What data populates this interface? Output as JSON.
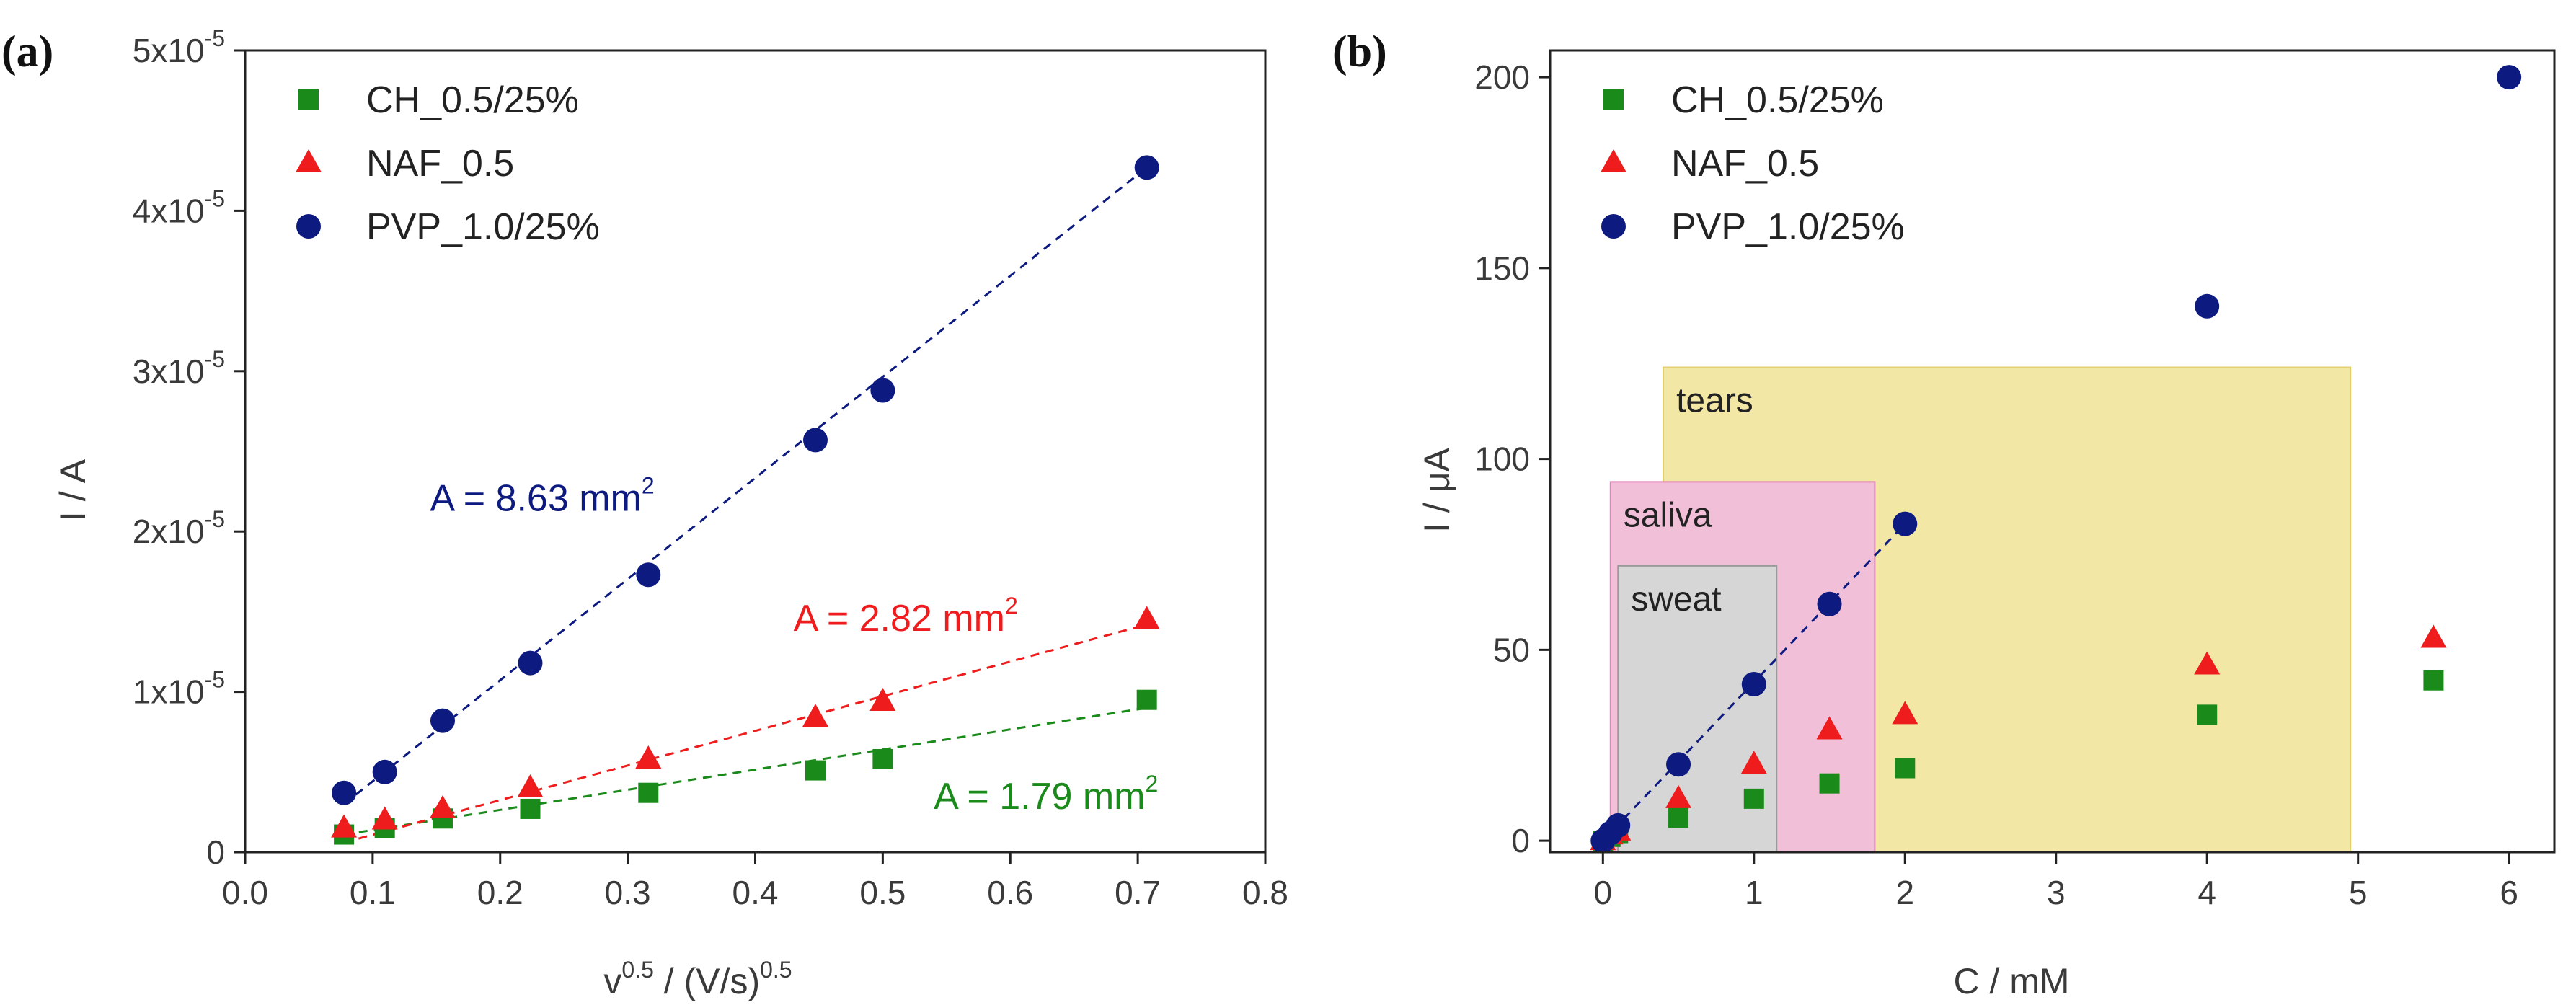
{
  "colors": {
    "ch": "#1a8a1a",
    "naf": "#ee1c1c",
    "pvp": "#0d1a80",
    "tears_fill": "#f3e7a6",
    "saliva_fill": "#f2bfd9",
    "sweat_fill": "#d6d6d6",
    "axis": "#222222",
    "text": "#3a3a3a"
  },
  "chart_data": [
    {
      "panel_label": "(a)",
      "type": "scatter",
      "xlabel_base": "v",
      "xlabel_sup": "0.5",
      "xlabel_mid": " / (V/s)",
      "xlabel_sup2": "0.5",
      "ylabel": "I / A",
      "xlim": [
        0.0,
        0.8
      ],
      "ylim": [
        0,
        5e-05
      ],
      "xticks": [
        0.0,
        0.1,
        0.2,
        0.3,
        0.4,
        0.5,
        0.6,
        0.7,
        0.8
      ],
      "xtick_labels": [
        "0.0",
        "0.1",
        "0.2",
        "0.3",
        "0.4",
        "0.5",
        "0.6",
        "0.7",
        "0.8"
      ],
      "yticks": [
        {
          "value": 0,
          "label": "0",
          "exp": ""
        },
        {
          "value": 1e-05,
          "label": "1x10",
          "exp": "-5"
        },
        {
          "value": 2e-05,
          "label": "2x10",
          "exp": "-5"
        },
        {
          "value": 3e-05,
          "label": "3x10",
          "exp": "-5"
        },
        {
          "value": 4e-05,
          "label": "4x10",
          "exp": "-5"
        },
        {
          "value": 5e-05,
          "label": "5x10",
          "exp": "-5"
        }
      ],
      "legend_position": "top-left",
      "series": [
        {
          "name": "CH_0.5/25%",
          "marker": "square",
          "color_key": "ch",
          "x": [
            0.0775,
            0.1095,
            0.1549,
            0.2236,
            0.3162,
            0.4472,
            0.5,
            0.7071
          ],
          "y": [
            1.1e-06,
            1.5e-06,
            2.1e-06,
            2.7e-06,
            3.7e-06,
            5.1e-06,
            5.8e-06,
            9.5e-06
          ],
          "fit": [
            [
              0.0775,
              1.1e-06
            ],
            [
              0.7071,
              9e-06
            ]
          ]
        },
        {
          "name": "NAF_0.5",
          "marker": "triangle",
          "color_key": "naf",
          "x": [
            0.0775,
            0.1095,
            0.1549,
            0.2236,
            0.3162,
            0.4472,
            0.5,
            0.7071
          ],
          "y": [
            1.5e-06,
            2e-06,
            2.7e-06,
            4e-06,
            5.8e-06,
            8.4e-06,
            9.4e-06,
            1.45e-05
          ],
          "fit": [
            [
              0.0775,
              6e-07
            ],
            [
              0.7071,
              1.42e-05
            ]
          ]
        },
        {
          "name": "PVP_1.0/25%",
          "marker": "circle",
          "color_key": "pvp",
          "x": [
            0.0775,
            0.1095,
            0.1549,
            0.2236,
            0.3162,
            0.4472,
            0.5,
            0.7071
          ],
          "y": [
            3.7e-06,
            5e-06,
            8.2e-06,
            1.18e-05,
            1.73e-05,
            2.57e-05,
            2.88e-05,
            4.27e-05
          ],
          "fit": [
            [
              0.0775,
              3e-06
            ],
            [
              0.7071,
              4.27e-05
            ]
          ]
        }
      ],
      "annotations": [
        {
          "text": "A = 8.63 mm",
          "sup": "2",
          "color_key": "pvp",
          "x": 0.145,
          "y": 2.13e-05
        },
        {
          "text": "A = 2.82 mm",
          "sup": "2",
          "color_key": "naf",
          "x": 0.43,
          "y": 1.38e-05
        },
        {
          "text": "A = 1.79 mm",
          "sup": "2",
          "color_key": "ch",
          "x": 0.54,
          "y": 2.7e-06
        }
      ]
    },
    {
      "panel_label": "(b)",
      "type": "scatter",
      "xlabel": "C / mM",
      "ylabel": "I / μA",
      "xlim": [
        -0.35,
        6.3
      ],
      "ylim": [
        -3,
        207
      ],
      "xticks": [
        0,
        1,
        2,
        3,
        4,
        5,
        6
      ],
      "xtick_labels": [
        "0",
        "1",
        "2",
        "3",
        "4",
        "5",
        "6"
      ],
      "yticks": [
        0,
        50,
        100,
        150,
        200
      ],
      "ytick_labels": [
        "0",
        "50",
        "100",
        "150",
        "200"
      ],
      "legend_position": "top-left",
      "regions": [
        {
          "label": "tears",
          "x0": 0.4,
          "x1": 4.95,
          "y0": -3,
          "y1": 124,
          "fill_key": "tears_fill"
        },
        {
          "label": "saliva",
          "x0": 0.05,
          "x1": 1.8,
          "y0": -3,
          "y1": 94,
          "fill_key": "saliva_fill"
        },
        {
          "label": "sweat",
          "x0": 0.1,
          "x1": 1.15,
          "y0": -3,
          "y1": 72,
          "fill_key": "sweat_fill"
        }
      ],
      "series": [
        {
          "name": "CH_0.5/25%",
          "marker": "square",
          "color_key": "ch",
          "x": [
            0,
            0.05,
            0.1,
            0.5,
            1.0,
            1.5,
            2.0,
            4.0,
            5.5
          ],
          "y": [
            0,
            1,
            2,
            6,
            11,
            15,
            19,
            33,
            42
          ],
          "fit": null
        },
        {
          "name": "NAF_0.5",
          "marker": "triangle",
          "color_key": "naf",
          "x": [
            0,
            0.05,
            0.1,
            0.5,
            1.0,
            1.5,
            2.0,
            4.0,
            5.5
          ],
          "y": [
            0,
            1.5,
            2.5,
            11,
            20,
            29,
            33,
            46,
            53
          ],
          "fit": null
        },
        {
          "name": "PVP_1.0/25%",
          "marker": "circle",
          "color_key": "pvp",
          "x": [
            0,
            0.05,
            0.1,
            0.5,
            1.0,
            1.5,
            2.0,
            4.0,
            6.0
          ],
          "y": [
            0,
            2,
            4,
            20,
            41,
            62,
            83,
            140,
            200
          ],
          "fit": [
            [
              0,
              0
            ],
            [
              2.0,
              83
            ]
          ]
        }
      ]
    }
  ]
}
